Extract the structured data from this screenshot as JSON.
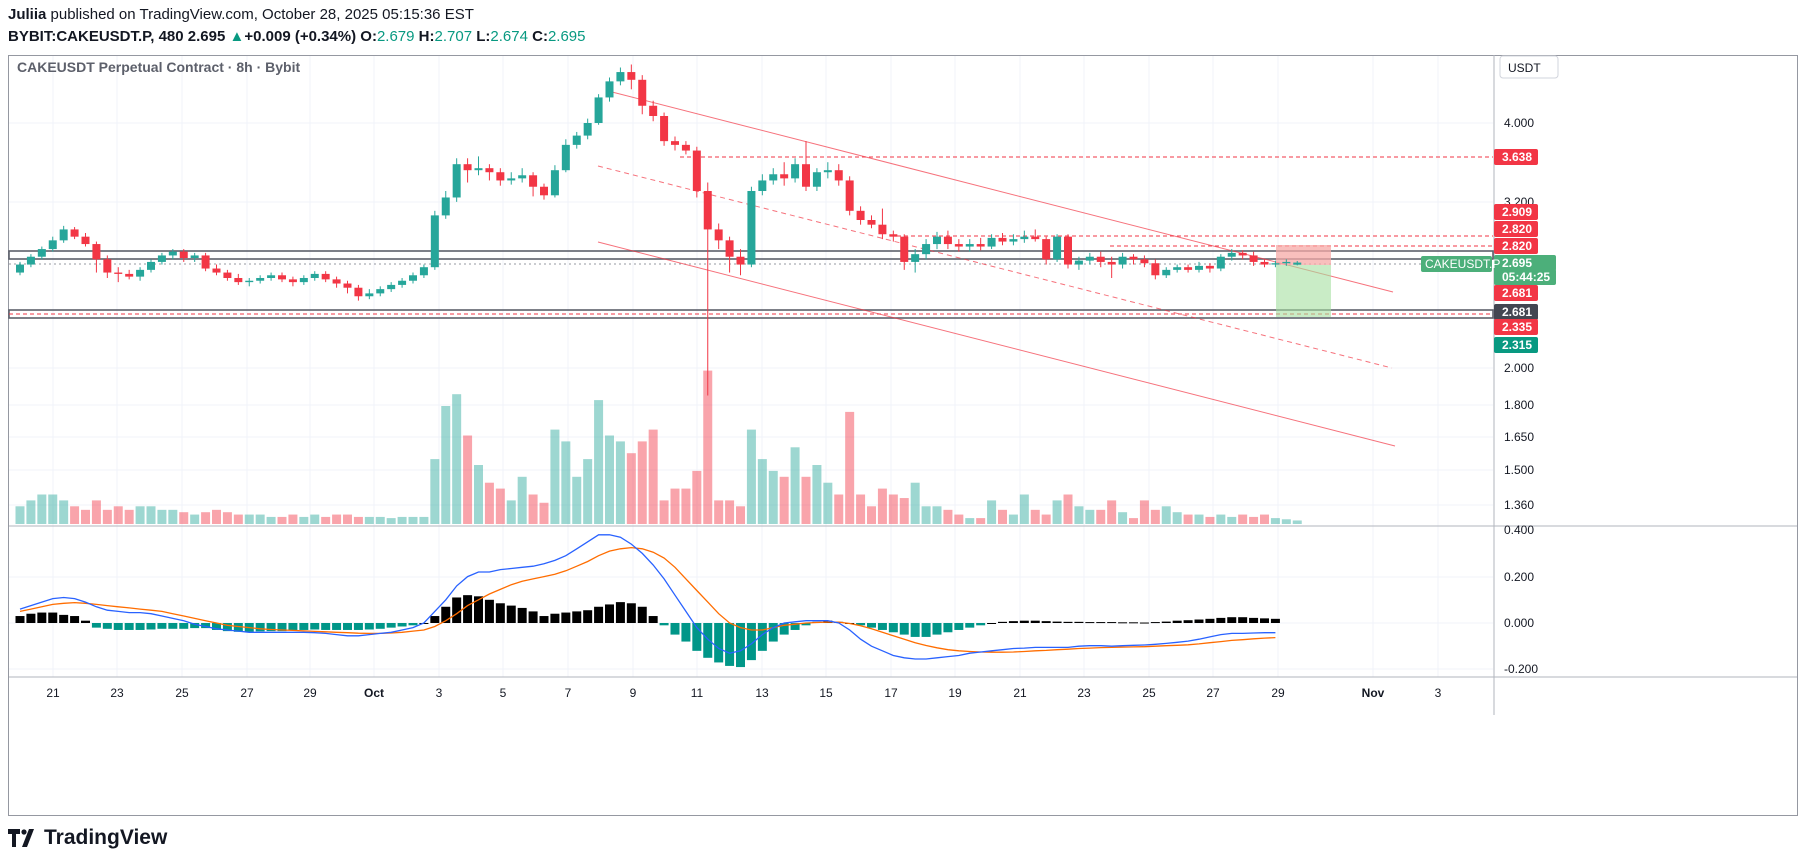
{
  "header": {
    "publisher": "Juliia",
    "published_text": "published on TradingView.com, October 28, 2025 05:15:36 EST",
    "symbol": "BYBIT:CAKEUSDT.P, 480",
    "last": "2.695",
    "change_arrow": "▲",
    "change": "+0.009 (+0.34%)",
    "o_label": "O:",
    "o": "2.679",
    "h_label": "H:",
    "h": "2.707",
    "l_label": "L:",
    "l": "2.674",
    "c_label": "C:",
    "c": "2.695"
  },
  "footer": {
    "brand": "TradingView"
  },
  "colors": {
    "up": "#089981",
    "down": "#f23645",
    "upBody": "#26a69a",
    "blue": "#2962ff",
    "orange": "#ff6d00"
  },
  "chart_data": {
    "type": "candlestick",
    "title": "CAKEUSDT Perpetual Contract · 8h · Bybit",
    "currency": "USDT",
    "price_axis_ticks": [
      "4.000",
      "3.200",
      "2.000",
      "1.800",
      "1.650",
      "1.500",
      "1.360"
    ],
    "price_labels": [
      {
        "text": "3.638",
        "kind": "red"
      },
      {
        "text": "2.909",
        "kind": "red"
      },
      {
        "text": "2.820",
        "kind": "red"
      },
      {
        "text": "2.820",
        "kind": "red"
      },
      {
        "text": "2.695",
        "kind": "green"
      },
      {
        "text": "05:44:25",
        "kind": "green"
      },
      {
        "text": "2.681",
        "kind": "red"
      },
      {
        "text": "2.681",
        "kind": "dark"
      },
      {
        "text": "2.335",
        "kind": "red"
      },
      {
        "text": "2.315",
        "kind": "darkgreen"
      }
    ],
    "symbol_tag": "CAKEUSDT.P",
    "macd_axis_ticks": [
      "0.400",
      "0.200",
      "0.000",
      "-0.200"
    ],
    "x_ticks": [
      "21",
      "23",
      "25",
      "27",
      "29",
      "Oct",
      "3",
      "5",
      "7",
      "9",
      "11",
      "13",
      "15",
      "17",
      "19",
      "21",
      "23",
      "25",
      "27",
      "29",
      "Nov",
      "3"
    ],
    "candles": [
      [
        2.62,
        2.68,
        2.6,
        2.7
      ],
      [
        2.68,
        2.74,
        2.66,
        2.76
      ],
      [
        2.74,
        2.8,
        2.72,
        2.82
      ],
      [
        2.8,
        2.87,
        2.78,
        2.9
      ],
      [
        2.87,
        2.96,
        2.85,
        2.99
      ],
      [
        2.96,
        2.9,
        2.88,
        2.98
      ],
      [
        2.9,
        2.84,
        2.82,
        2.93
      ],
      [
        2.84,
        2.72,
        2.62,
        2.86
      ],
      [
        2.72,
        2.62,
        2.58,
        2.75
      ],
      [
        2.62,
        2.61,
        2.55,
        2.66
      ],
      [
        2.61,
        2.59,
        2.57,
        2.64
      ],
      [
        2.59,
        2.64,
        2.56,
        2.66
      ],
      [
        2.64,
        2.7,
        2.62,
        2.72
      ],
      [
        2.7,
        2.75,
        2.68,
        2.77
      ],
      [
        2.75,
        2.78,
        2.72,
        2.8
      ],
      [
        2.78,
        2.73,
        2.7,
        2.8
      ],
      [
        2.73,
        2.75,
        2.7,
        2.77
      ],
      [
        2.75,
        2.65,
        2.63,
        2.77
      ],
      [
        2.65,
        2.62,
        2.6,
        2.68
      ],
      [
        2.62,
        2.58,
        2.56,
        2.64
      ],
      [
        2.58,
        2.55,
        2.53,
        2.61
      ],
      [
        2.55,
        2.56,
        2.52,
        2.58
      ],
      [
        2.56,
        2.58,
        2.54,
        2.6
      ],
      [
        2.58,
        2.6,
        2.56,
        2.62
      ],
      [
        2.6,
        2.57,
        2.55,
        2.62
      ],
      [
        2.57,
        2.55,
        2.52,
        2.59
      ],
      [
        2.55,
        2.58,
        2.53,
        2.6
      ],
      [
        2.58,
        2.61,
        2.56,
        2.63
      ],
      [
        2.61,
        2.57,
        2.55,
        2.63
      ],
      [
        2.57,
        2.54,
        2.51,
        2.59
      ],
      [
        2.54,
        2.51,
        2.47,
        2.56
      ],
      [
        2.51,
        2.45,
        2.42,
        2.53
      ],
      [
        2.45,
        2.47,
        2.43,
        2.5
      ],
      [
        2.47,
        2.5,
        2.45,
        2.52
      ],
      [
        2.5,
        2.53,
        2.48,
        2.55
      ],
      [
        2.53,
        2.56,
        2.51,
        2.58
      ],
      [
        2.56,
        2.6,
        2.54,
        2.62
      ],
      [
        2.6,
        2.66,
        2.58,
        2.68
      ],
      [
        2.66,
        3.08,
        2.64,
        3.12
      ],
      [
        3.08,
        3.24,
        3.05,
        3.3
      ],
      [
        3.24,
        3.56,
        3.2,
        3.62
      ],
      [
        3.56,
        3.5,
        3.38,
        3.62
      ],
      [
        3.5,
        3.52,
        3.45,
        3.64
      ],
      [
        3.52,
        3.48,
        3.4,
        3.56
      ],
      [
        3.48,
        3.4,
        3.35,
        3.52
      ],
      [
        3.4,
        3.42,
        3.36,
        3.48
      ],
      [
        3.42,
        3.45,
        3.38,
        3.52
      ],
      [
        3.45,
        3.34,
        3.25,
        3.48
      ],
      [
        3.34,
        3.26,
        3.22,
        3.37
      ],
      [
        3.26,
        3.5,
        3.24,
        3.55
      ],
      [
        3.5,
        3.76,
        3.48,
        3.82
      ],
      [
        3.76,
        3.86,
        3.72,
        3.9
      ],
      [
        3.86,
        4.0,
        3.82,
        4.05
      ],
      [
        4.0,
        4.3,
        3.98,
        4.34
      ],
      [
        4.3,
        4.5,
        4.25,
        4.55
      ],
      [
        4.5,
        4.62,
        4.45,
        4.68
      ],
      [
        4.62,
        4.52,
        4.4,
        4.72
      ],
      [
        4.52,
        4.2,
        4.1,
        4.58
      ],
      [
        4.2,
        4.08,
        4.02,
        4.26
      ],
      [
        4.08,
        3.8,
        3.75,
        4.12
      ],
      [
        3.8,
        3.76,
        3.7,
        3.85
      ],
      [
        3.76,
        3.7,
        3.66,
        3.8
      ],
      [
        3.7,
        3.3,
        3.24,
        3.74
      ],
      [
        3.3,
        2.96,
        1.85,
        3.38
      ],
      [
        2.96,
        2.87,
        2.8,
        3.01
      ],
      [
        2.87,
        2.74,
        2.62,
        2.9
      ],
      [
        2.74,
        2.68,
        2.6,
        2.8
      ],
      [
        2.68,
        3.3,
        2.66,
        3.34
      ],
      [
        3.3,
        3.4,
        3.26,
        3.46
      ],
      [
        3.4,
        3.46,
        3.36,
        3.52
      ],
      [
        3.46,
        3.42,
        3.35,
        3.58
      ],
      [
        3.42,
        3.56,
        3.38,
        3.62
      ],
      [
        3.56,
        3.34,
        3.3,
        3.8
      ],
      [
        3.34,
        3.48,
        3.3,
        3.52
      ],
      [
        3.48,
        3.5,
        3.42,
        3.58
      ],
      [
        3.5,
        3.4,
        3.35,
        3.56
      ],
      [
        3.4,
        3.12,
        3.08,
        3.44
      ],
      [
        3.12,
        3.04,
        3.0,
        3.16
      ],
      [
        3.04,
        3.0,
        2.97,
        3.08
      ],
      [
        3.0,
        2.92,
        2.88,
        3.14
      ],
      [
        2.92,
        2.9,
        2.86,
        2.95
      ],
      [
        2.9,
        2.7,
        2.64,
        2.92
      ],
      [
        2.7,
        2.76,
        2.62,
        2.8
      ],
      [
        2.76,
        2.84,
        2.72,
        2.88
      ],
      [
        2.84,
        2.9,
        2.8,
        2.94
      ],
      [
        2.9,
        2.84,
        2.8,
        2.95
      ],
      [
        2.84,
        2.82,
        2.78,
        2.88
      ],
      [
        2.82,
        2.84,
        2.78,
        2.88
      ],
      [
        2.84,
        2.82,
        2.79,
        2.89
      ],
      [
        2.82,
        2.89,
        2.8,
        2.92
      ],
      [
        2.89,
        2.86,
        2.83,
        2.93
      ],
      [
        2.86,
        2.88,
        2.83,
        2.92
      ],
      [
        2.88,
        2.9,
        2.85,
        2.95
      ],
      [
        2.9,
        2.88,
        2.86,
        2.96
      ],
      [
        2.88,
        2.72,
        2.68,
        2.9
      ],
      [
        2.72,
        2.9,
        2.7,
        2.92
      ],
      [
        2.9,
        2.68,
        2.65,
        2.92
      ],
      [
        2.68,
        2.71,
        2.64,
        2.74
      ],
      [
        2.71,
        2.74,
        2.68,
        2.77
      ],
      [
        2.74,
        2.7,
        2.66,
        2.78
      ],
      [
        2.7,
        2.68,
        2.58,
        2.74
      ],
      [
        2.68,
        2.74,
        2.65,
        2.77
      ],
      [
        2.74,
        2.72,
        2.68,
        2.76
      ],
      [
        2.72,
        2.69,
        2.66,
        2.75
      ],
      [
        2.69,
        2.6,
        2.57,
        2.72
      ],
      [
        2.6,
        2.64,
        2.58,
        2.66
      ],
      [
        2.64,
        2.66,
        2.62,
        2.68
      ],
      [
        2.66,
        2.64,
        2.62,
        2.68
      ],
      [
        2.64,
        2.67,
        2.62,
        2.7
      ],
      [
        2.67,
        2.65,
        2.62,
        2.69
      ],
      [
        2.65,
        2.74,
        2.63,
        2.76
      ],
      [
        2.74,
        2.77,
        2.71,
        2.8
      ],
      [
        2.77,
        2.75,
        2.72,
        2.79
      ],
      [
        2.75,
        2.7,
        2.67,
        2.78
      ],
      [
        2.7,
        2.68,
        2.66,
        2.72
      ],
      [
        2.68,
        2.69,
        2.66,
        2.71
      ],
      [
        2.69,
        2.7,
        2.67,
        2.72
      ],
      [
        2.679,
        2.695,
        2.674,
        2.707
      ]
    ],
    "volume": [
      0.15,
      0.2,
      0.25,
      0.25,
      0.2,
      0.15,
      0.12,
      0.2,
      0.12,
      0.15,
      0.12,
      0.15,
      0.15,
      0.12,
      0.12,
      0.1,
      0.08,
      0.1,
      0.12,
      0.1,
      0.08,
      0.08,
      0.08,
      0.06,
      0.06,
      0.08,
      0.06,
      0.08,
      0.06,
      0.08,
      0.08,
      0.06,
      0.06,
      0.06,
      0.05,
      0.06,
      0.06,
      0.06,
      0.55,
      1.0,
      1.1,
      0.75,
      0.5,
      0.35,
      0.3,
      0.2,
      0.4,
      0.25,
      0.18,
      0.8,
      0.7,
      0.4,
      0.55,
      1.05,
      0.75,
      0.7,
      0.6,
      0.7,
      0.8,
      0.2,
      0.3,
      0.3,
      0.45,
      1.3,
      0.2,
      0.2,
      0.15,
      0.8,
      0.55,
      0.45,
      0.4,
      0.65,
      0.4,
      0.5,
      0.35,
      0.25,
      0.95,
      0.25,
      0.15,
      0.3,
      0.25,
      0.22,
      0.35,
      0.15,
      0.15,
      0.12,
      0.08,
      0.05,
      0.05,
      0.2,
      0.12,
      0.08,
      0.25,
      0.12,
      0.08,
      0.2,
      0.25,
      0.15,
      0.12,
      0.12,
      0.2,
      0.1,
      0.05,
      0.2,
      0.12,
      0.15,
      0.1,
      0.08,
      0.08,
      0.06,
      0.08,
      0.06,
      0.08,
      0.06,
      0.08,
      0.05,
      0.04,
      0.03
    ],
    "macd_hist": [
      0.03,
      0.04,
      0.045,
      0.045,
      0.035,
      0.03,
      0.01,
      -0.02,
      -0.025,
      -0.03,
      -0.03,
      -0.03,
      -0.028,
      -0.025,
      -0.025,
      -0.025,
      -0.022,
      -0.022,
      -0.03,
      -0.035,
      -0.038,
      -0.038,
      -0.036,
      -0.035,
      -0.035,
      -0.032,
      -0.03,
      -0.028,
      -0.03,
      -0.03,
      -0.03,
      -0.03,
      -0.028,
      -0.025,
      -0.02,
      -0.015,
      -0.01,
      0.0,
      0.03,
      0.07,
      0.11,
      0.12,
      0.115,
      0.1,
      0.085,
      0.075,
      0.065,
      0.05,
      0.03,
      0.04,
      0.045,
      0.05,
      0.055,
      0.07,
      0.08,
      0.09,
      0.085,
      0.07,
      0.03,
      -0.01,
      -0.05,
      -0.08,
      -0.12,
      -0.15,
      -0.17,
      -0.185,
      -0.19,
      -0.16,
      -0.12,
      -0.08,
      -0.05,
      -0.03,
      -0.01,
      0.005,
      0.01,
      0.005,
      0.0,
      -0.01,
      -0.02,
      -0.03,
      -0.04,
      -0.05,
      -0.06,
      -0.06,
      -0.05,
      -0.04,
      -0.03,
      -0.02,
      -0.01,
      0.0,
      0.005,
      0.008,
      0.01,
      0.01,
      0.008,
      0.006,
      0.005,
      0.005,
      0.004,
      0.004,
      0.004,
      0.003,
      0.003,
      0.002,
      0.004,
      0.006,
      0.01,
      0.012,
      0.015,
      0.018,
      0.022,
      0.025,
      0.025,
      0.022,
      0.02,
      0.018
    ],
    "macd_line": [
      0.06,
      0.075,
      0.09,
      0.105,
      0.11,
      0.105,
      0.09,
      0.07,
      0.055,
      0.05,
      0.045,
      0.045,
      0.04,
      0.03,
      0.02,
      0.01,
      -0.005,
      -0.015,
      -0.025,
      -0.03,
      -0.035,
      -0.04,
      -0.04,
      -0.04,
      -0.04,
      -0.04,
      -0.04,
      -0.042,
      -0.045,
      -0.05,
      -0.055,
      -0.055,
      -0.05,
      -0.045,
      -0.04,
      -0.03,
      -0.02,
      0.0,
      0.05,
      0.1,
      0.16,
      0.2,
      0.22,
      0.22,
      0.23,
      0.235,
      0.24,
      0.245,
      0.255,
      0.27,
      0.29,
      0.32,
      0.35,
      0.38,
      0.38,
      0.37,
      0.34,
      0.3,
      0.25,
      0.19,
      0.12,
      0.05,
      -0.02,
      -0.07,
      -0.11,
      -0.13,
      -0.12,
      -0.09,
      -0.05,
      -0.02,
      0.0,
      0.005,
      0.01,
      0.01,
      0.01,
      0.0,
      -0.03,
      -0.07,
      -0.1,
      -0.12,
      -0.14,
      -0.15,
      -0.155,
      -0.155,
      -0.15,
      -0.145,
      -0.14,
      -0.13,
      -0.125,
      -0.12,
      -0.115,
      -0.11,
      -0.108,
      -0.105,
      -0.105,
      -0.105,
      -0.105,
      -0.1,
      -0.098,
      -0.098,
      -0.1,
      -0.098,
      -0.096,
      -0.095,
      -0.092,
      -0.088,
      -0.083,
      -0.078,
      -0.07,
      -0.06,
      -0.05,
      -0.045,
      -0.045,
      -0.043,
      -0.042,
      -0.042
    ],
    "signal_line": [
      0.05,
      0.06,
      0.07,
      0.08,
      0.085,
      0.088,
      0.085,
      0.08,
      0.075,
      0.07,
      0.065,
      0.06,
      0.055,
      0.05,
      0.04,
      0.03,
      0.02,
      0.01,
      0.0,
      -0.01,
      -0.015,
      -0.02,
      -0.025,
      -0.028,
      -0.03,
      -0.032,
      -0.034,
      -0.036,
      -0.038,
      -0.04,
      -0.042,
      -0.044,
      -0.045,
      -0.045,
      -0.043,
      -0.04,
      -0.035,
      -0.03,
      -0.015,
      0.01,
      0.04,
      0.075,
      0.1,
      0.125,
      0.145,
      0.165,
      0.18,
      0.19,
      0.2,
      0.21,
      0.225,
      0.245,
      0.265,
      0.29,
      0.31,
      0.32,
      0.325,
      0.32,
      0.305,
      0.28,
      0.24,
      0.19,
      0.14,
      0.09,
      0.04,
      0.0,
      -0.02,
      -0.03,
      -0.03,
      -0.02,
      -0.01,
      -0.005,
      0.0,
      0.002,
      0.004,
      0.004,
      -0.002,
      -0.012,
      -0.025,
      -0.04,
      -0.055,
      -0.07,
      -0.085,
      -0.097,
      -0.107,
      -0.115,
      -0.12,
      -0.123,
      -0.125,
      -0.126,
      -0.126,
      -0.125,
      -0.123,
      -0.12,
      -0.118,
      -0.115,
      -0.113,
      -0.11,
      -0.108,
      -0.106,
      -0.105,
      -0.104,
      -0.103,
      -0.102,
      -0.1,
      -0.098,
      -0.096,
      -0.094,
      -0.09,
      -0.085,
      -0.08,
      -0.075,
      -0.072,
      -0.068,
      -0.065,
      -0.063
    ]
  }
}
